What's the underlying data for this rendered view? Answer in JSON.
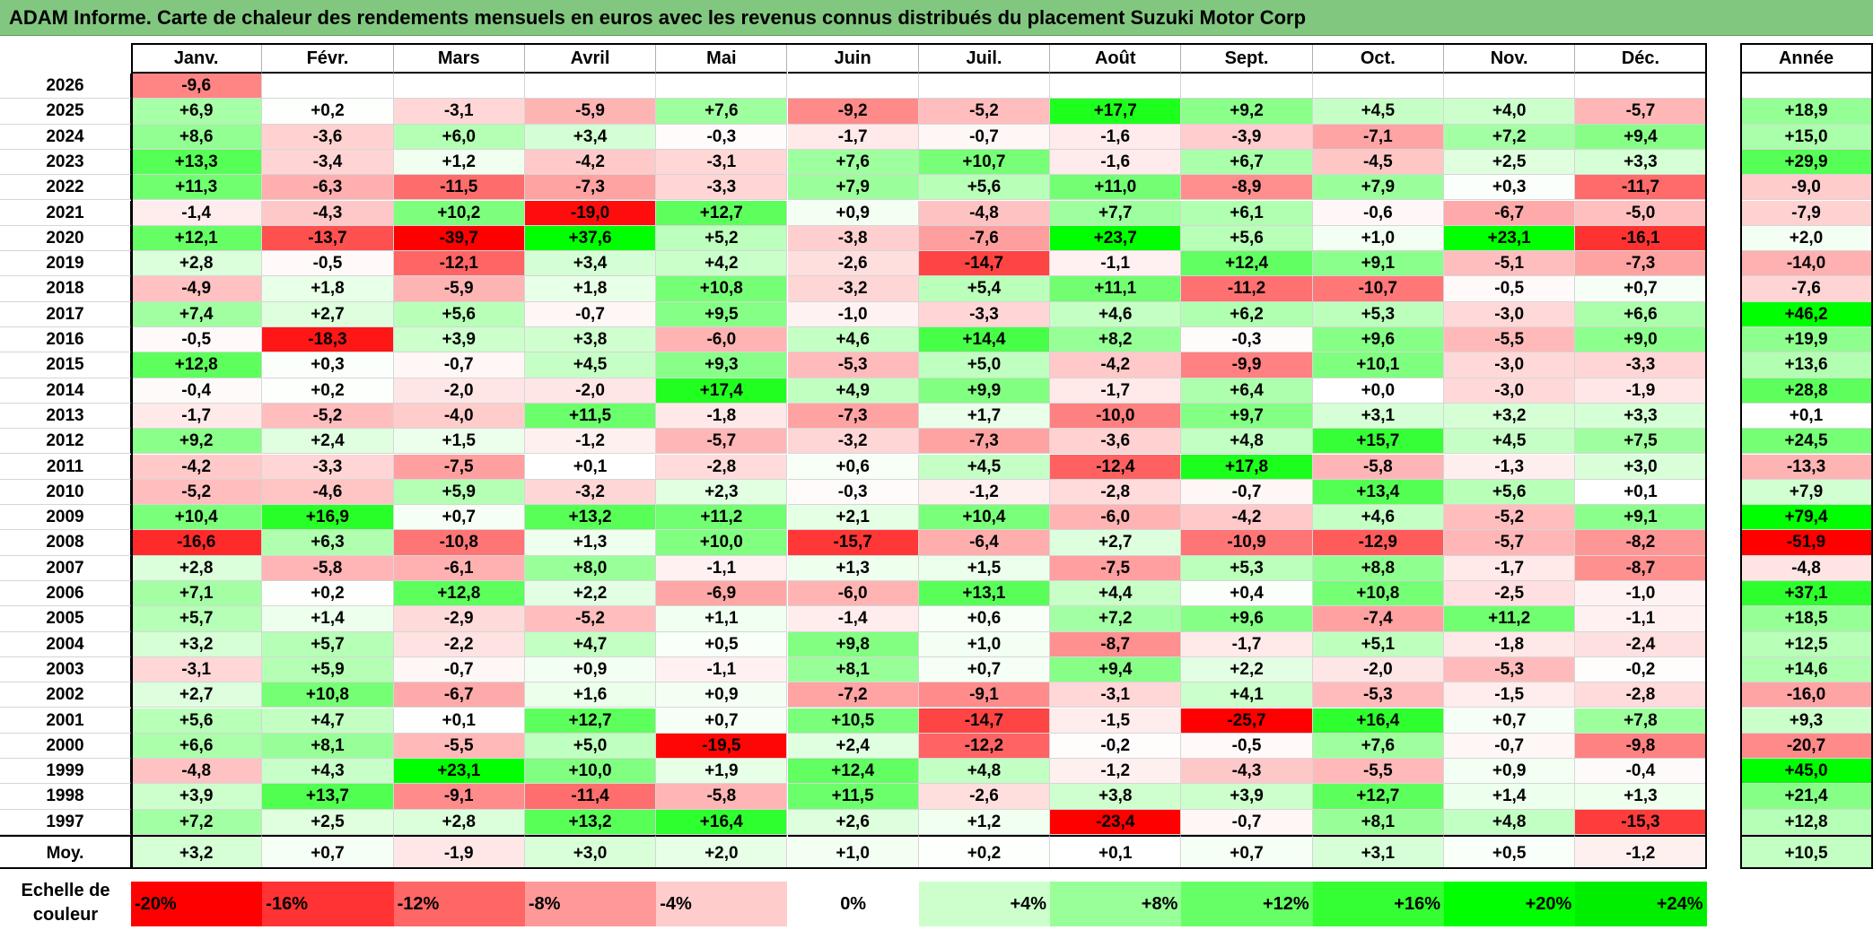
{
  "title": "ADAM Informe. Carte de chaleur des rendements mensuels en euros avec les revenus connus distribués du placement Suzuki Motor Corp",
  "chart_data": {
    "type": "heatmap",
    "title": "ADAM Informe. Carte de chaleur des rendements mensuels en euros avec les revenus connus distribués du placement Suzuki Motor Corp",
    "columns": [
      "Janv.",
      "Févr.",
      "Mars",
      "Avril",
      "Mai",
      "Juin",
      "Juil.",
      "Août",
      "Sept.",
      "Oct.",
      "Nov.",
      "Déc."
    ],
    "annual_header": "Année",
    "rows": [
      {
        "year": "2026",
        "values": [
          "-9,6",
          "",
          "",
          "",
          "",
          "",
          "",
          "",
          "",
          "",
          "",
          ""
        ],
        "annual": ""
      },
      {
        "year": "2025",
        "values": [
          "+6,9",
          "+0,2",
          "-3,1",
          "-5,9",
          "+7,6",
          "-9,2",
          "-5,2",
          "+17,7",
          "+9,2",
          "+4,5",
          "+4,0",
          "-5,7"
        ],
        "annual": "+18,9"
      },
      {
        "year": "2024",
        "values": [
          "+8,6",
          "-3,6",
          "+6,0",
          "+3,4",
          "-0,3",
          "-1,7",
          "-0,7",
          "-1,6",
          "-3,9",
          "-7,1",
          "+7,2",
          "+9,4"
        ],
        "annual": "+15,0"
      },
      {
        "year": "2023",
        "values": [
          "+13,3",
          "-3,4",
          "+1,2",
          "-4,2",
          "-3,1",
          "+7,6",
          "+10,7",
          "-1,6",
          "+6,7",
          "-4,5",
          "+2,5",
          "+3,3"
        ],
        "annual": "+29,9"
      },
      {
        "year": "2022",
        "values": [
          "+11,3",
          "-6,3",
          "-11,5",
          "-7,3",
          "-3,3",
          "+7,9",
          "+5,6",
          "+11,0",
          "-8,9",
          "+7,9",
          "+0,3",
          "-11,7"
        ],
        "annual": "-9,0"
      },
      {
        "year": "2021",
        "values": [
          "-1,4",
          "-4,3",
          "+10,2",
          "-19,0",
          "+12,7",
          "+0,9",
          "-4,8",
          "+7,7",
          "+6,1",
          "-0,6",
          "-6,7",
          "-5,0"
        ],
        "annual": "-7,9"
      },
      {
        "year": "2020",
        "values": [
          "+12,1",
          "-13,7",
          "-39,7",
          "+37,6",
          "+5,2",
          "-3,8",
          "-7,6",
          "+23,7",
          "+5,6",
          "+1,0",
          "+23,1",
          "-16,1"
        ],
        "annual": "+2,0"
      },
      {
        "year": "2019",
        "values": [
          "+2,8",
          "-0,5",
          "-12,1",
          "+3,4",
          "+4,2",
          "-2,6",
          "-14,7",
          "-1,1",
          "+12,4",
          "+9,1",
          "-5,1",
          "-7,3"
        ],
        "annual": "-14,0"
      },
      {
        "year": "2018",
        "values": [
          "-4,9",
          "+1,8",
          "-5,9",
          "+1,8",
          "+10,8",
          "-3,2",
          "+5,4",
          "+11,1",
          "-11,2",
          "-10,7",
          "-0,5",
          "+0,7"
        ],
        "annual": "-7,6"
      },
      {
        "year": "2017",
        "values": [
          "+7,4",
          "+2,7",
          "+5,6",
          "-0,7",
          "+9,5",
          "-1,0",
          "-3,3",
          "+4,6",
          "+6,2",
          "+5,3",
          "-3,0",
          "+6,6"
        ],
        "annual": "+46,2"
      },
      {
        "year": "2016",
        "values": [
          "-0,5",
          "-18,3",
          "+3,9",
          "+3,8",
          "-6,0",
          "+4,6",
          "+14,4",
          "+8,2",
          "-0,3",
          "+9,6",
          "-5,5",
          "+9,0"
        ],
        "annual": "+19,9"
      },
      {
        "year": "2015",
        "values": [
          "+12,8",
          "+0,3",
          "-0,7",
          "+4,5",
          "+9,3",
          "-5,3",
          "+5,0",
          "-4,2",
          "-9,9",
          "+10,1",
          "-3,0",
          "-3,3"
        ],
        "annual": "+13,6"
      },
      {
        "year": "2014",
        "values": [
          "-0,4",
          "+0,2",
          "-2,0",
          "-2,0",
          "+17,4",
          "+4,9",
          "+9,9",
          "-1,7",
          "+6,4",
          "+0,0",
          "-3,0",
          "-1,9"
        ],
        "annual": "+28,8"
      },
      {
        "year": "2013",
        "values": [
          "-1,7",
          "-5,2",
          "-4,0",
          "+11,5",
          "-1,8",
          "-7,3",
          "+1,7",
          "-10,0",
          "+9,7",
          "+3,1",
          "+3,2",
          "+3,3"
        ],
        "annual": "+0,1"
      },
      {
        "year": "2012",
        "values": [
          "+9,2",
          "+2,4",
          "+1,5",
          "-1,2",
          "-5,7",
          "-3,2",
          "-7,3",
          "-3,6",
          "+4,8",
          "+15,7",
          "+4,5",
          "+7,5"
        ],
        "annual": "+24,5"
      },
      {
        "year": "2011",
        "values": [
          "-4,2",
          "-3,3",
          "-7,5",
          "+0,1",
          "-2,8",
          "+0,6",
          "+4,5",
          "-12,4",
          "+17,8",
          "-5,8",
          "-1,3",
          "+3,0"
        ],
        "annual": "-13,3"
      },
      {
        "year": "2010",
        "values": [
          "-5,2",
          "-4,6",
          "+5,9",
          "-3,2",
          "+2,3",
          "-0,3",
          "-1,2",
          "-2,8",
          "-0,7",
          "+13,4",
          "+5,6",
          "+0,1"
        ],
        "annual": "+7,9"
      },
      {
        "year": "2009",
        "values": [
          "+10,4",
          "+16,9",
          "+0,7",
          "+13,2",
          "+11,2",
          "+2,1",
          "+10,4",
          "-6,0",
          "-4,2",
          "+4,6",
          "-5,2",
          "+9,1"
        ],
        "annual": "+79,4"
      },
      {
        "year": "2008",
        "values": [
          "-16,6",
          "+6,3",
          "-10,8",
          "+1,3",
          "+10,0",
          "-15,7",
          "-6,4",
          "+2,7",
          "-10,9",
          "-12,9",
          "-5,7",
          "-8,2"
        ],
        "annual": "-51,9"
      },
      {
        "year": "2007",
        "values": [
          "+2,8",
          "-5,8",
          "-6,1",
          "+8,0",
          "-1,1",
          "+1,3",
          "+1,5",
          "-7,5",
          "+5,3",
          "+8,8",
          "-1,7",
          "-8,7"
        ],
        "annual": "-4,8"
      },
      {
        "year": "2006",
        "values": [
          "+7,1",
          "+0,2",
          "+12,8",
          "+2,2",
          "-6,9",
          "-6,0",
          "+13,1",
          "+4,4",
          "+0,4",
          "+10,8",
          "-2,5",
          "-1,0"
        ],
        "annual": "+37,1"
      },
      {
        "year": "2005",
        "values": [
          "+5,7",
          "+1,4",
          "-2,9",
          "-5,2",
          "+1,1",
          "-1,4",
          "+0,6",
          "+7,2",
          "+9,6",
          "-7,4",
          "+11,2",
          "-1,1"
        ],
        "annual": "+18,5"
      },
      {
        "year": "2004",
        "values": [
          "+3,2",
          "+5,7",
          "-2,2",
          "+4,7",
          "+0,5",
          "+9,8",
          "+1,0",
          "-8,7",
          "-1,7",
          "+5,1",
          "-1,8",
          "-2,4"
        ],
        "annual": "+12,5"
      },
      {
        "year": "2003",
        "values": [
          "-3,1",
          "+5,9",
          "-0,7",
          "+0,9",
          "-1,1",
          "+8,1",
          "+0,7",
          "+9,4",
          "+2,2",
          "-2,0",
          "-5,3",
          "-0,2"
        ],
        "annual": "+14,6"
      },
      {
        "year": "2002",
        "values": [
          "+2,7",
          "+10,8",
          "-6,7",
          "+1,6",
          "+0,9",
          "-7,2",
          "-9,1",
          "-3,1",
          "+4,1",
          "-5,3",
          "-1,5",
          "-2,8"
        ],
        "annual": "-16,0"
      },
      {
        "year": "2001",
        "values": [
          "+5,6",
          "+4,7",
          "+0,1",
          "+12,7",
          "+0,7",
          "+10,5",
          "-14,7",
          "-1,5",
          "-25,7",
          "+16,4",
          "+0,7",
          "+7,8"
        ],
        "annual": "+9,3"
      },
      {
        "year": "2000",
        "values": [
          "+6,6",
          "+8,1",
          "-5,5",
          "+5,0",
          "-19,5",
          "+2,4",
          "-12,2",
          "-0,2",
          "-0,5",
          "+7,6",
          "-0,7",
          "-9,8"
        ],
        "annual": "-20,7"
      },
      {
        "year": "1999",
        "values": [
          "-4,8",
          "+4,3",
          "+23,1",
          "+10,0",
          "+1,9",
          "+12,4",
          "+4,8",
          "-1,2",
          "-4,3",
          "-5,5",
          "+0,9",
          "-0,4"
        ],
        "annual": "+45,0"
      },
      {
        "year": "1998",
        "values": [
          "+3,9",
          "+13,7",
          "-9,1",
          "-11,4",
          "-5,8",
          "+11,5",
          "-2,6",
          "+3,8",
          "+3,9",
          "+12,7",
          "+1,4",
          "+1,3"
        ],
        "annual": "+21,4"
      },
      {
        "year": "1997",
        "values": [
          "+7,2",
          "+2,5",
          "+2,8",
          "+13,2",
          "+16,4",
          "+2,6",
          "+1,2",
          "-23,4",
          "-0,7",
          "+8,1",
          "+4,8",
          "-15,3"
        ],
        "annual": "+12,8"
      }
    ],
    "average": {
      "label": "Moy.",
      "values": [
        "+3,2",
        "+0,7",
        "-1,9",
        "+3,0",
        "+2,0",
        "+1,0",
        "+0,2",
        "+0,1",
        "+0,7",
        "+3,1",
        "+0,5",
        "-1,2"
      ],
      "annual": "+10,5"
    },
    "color_scale": {
      "label": "Echelle de couleur",
      "stops": [
        {
          "label": "-20%",
          "value": -20,
          "color": "#ff0000"
        },
        {
          "label": "-16%",
          "value": -16,
          "color": "#ff3333"
        },
        {
          "label": "-12%",
          "value": -12,
          "color": "#ff6666"
        },
        {
          "label": "-8%",
          "value": -8,
          "color": "#ff9999"
        },
        {
          "label": "-4%",
          "value": -4,
          "color": "#ffcccc"
        },
        {
          "label": "0%",
          "value": 0,
          "color": "#ffffff"
        },
        {
          "label": "+4%",
          "value": 4,
          "color": "#ccffcc"
        },
        {
          "label": "+8%",
          "value": 8,
          "color": "#99ff99"
        },
        {
          "label": "+12%",
          "value": 12,
          "color": "#66ff66"
        },
        {
          "label": "+16%",
          "value": 16,
          "color": "#33ff33"
        },
        {
          "label": "+20%",
          "value": 20,
          "color": "#00ff00"
        },
        {
          "label": "+24%",
          "value": 24,
          "color": "#00ee00"
        }
      ]
    }
  }
}
